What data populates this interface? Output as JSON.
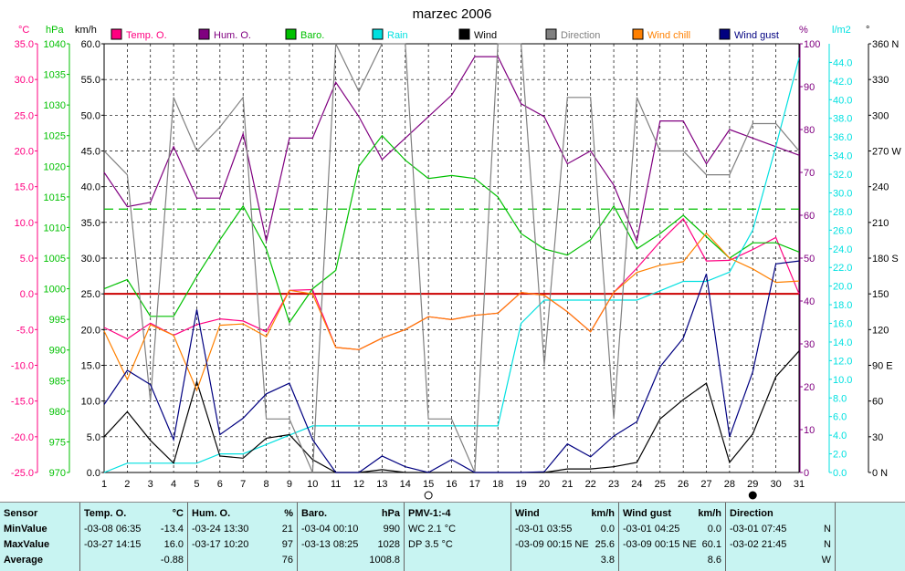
{
  "chart_data": {
    "type": "line",
    "title": "marzec 2006",
    "x": [
      1,
      2,
      3,
      4,
      5,
      6,
      7,
      8,
      9,
      10,
      11,
      12,
      13,
      14,
      15,
      16,
      17,
      18,
      19,
      20,
      21,
      22,
      23,
      24,
      25,
      26,
      27,
      28,
      29,
      30,
      31
    ],
    "axes": {
      "temp": {
        "label": "°C",
        "ylim": [
          -25,
          35
        ],
        "ticks": [
          "35.0",
          "30.0",
          "25.0",
          "20.0",
          "15.0",
          "10.0",
          "5.0",
          "0.0",
          "-5.0",
          "-10.0",
          "-15.0",
          "-20.0",
          "-25.0"
        ],
        "color": "#ff0080"
      },
      "baro": {
        "label": "hPa",
        "ylim": [
          970,
          1040
        ],
        "ticks": [
          "1040",
          "1035",
          "1030",
          "1025",
          "1020",
          "1015",
          "1010",
          "1005",
          "1000",
          "995",
          "990",
          "985",
          "980",
          "975",
          "970"
        ],
        "color": "#00c000"
      },
      "wind": {
        "label": "km/h",
        "ylim": [
          0,
          60
        ],
        "ticks": [
          "60.0",
          "55.0",
          "50.0",
          "45.0",
          "40.0",
          "35.0",
          "30.0",
          "25.0",
          "20.0",
          "15.0",
          "10.0",
          "5.0",
          "0.0"
        ],
        "color": "#000000"
      },
      "hum": {
        "label": "%",
        "ylim": [
          0,
          100
        ],
        "ticks": [
          "100",
          "90",
          "80",
          "70",
          "60",
          "50",
          "40",
          "30",
          "20",
          "10",
          "0"
        ],
        "color": "#800080"
      },
      "rain": {
        "label": "l/m2",
        "ylim": [
          0,
          46
        ],
        "ticks": [
          "44.0",
          "42.0",
          "40.0",
          "38.0",
          "36.0",
          "34.0",
          "32.0",
          "30.0",
          "28.0",
          "26.0",
          "24.0",
          "22.0",
          "20.0",
          "18.0",
          "16.0",
          "14.0",
          "12.0",
          "10.0",
          "8.0",
          "6.0",
          "4.0",
          "2.0",
          "0.0"
        ],
        "color": "#00e0e0"
      },
      "dir": {
        "label": "°",
        "ylim": [
          0,
          360
        ],
        "ticks": [
          "360 N",
          "330",
          "300",
          "270 W",
          "240",
          "210",
          "180 S",
          "150",
          "120",
          "90 E",
          "60",
          "30",
          "0 N"
        ],
        "color": "#000000"
      }
    },
    "legend": [
      {
        "name": "Temp. O.",
        "color": "#ff0080"
      },
      {
        "name": "Hum. O.",
        "color": "#800080"
      },
      {
        "name": "Baro.",
        "color": "#00c000"
      },
      {
        "name": "Rain",
        "color": "#00e0e0"
      },
      {
        "name": "Wind",
        "color": "#000000"
      },
      {
        "name": "Direction",
        "color": "#808080"
      },
      {
        "name": "Wind chill",
        "color": "#ff8000"
      },
      {
        "name": "Wind gust",
        "color": "#000080"
      }
    ],
    "series": [
      {
        "name": "Temp. O.",
        "axis": "temp",
        "color": "#ff0080",
        "values": [
          -4.7,
          -6.3,
          -4.1,
          -5.8,
          -4.3,
          -3.5,
          -3.8,
          -5.3,
          0.5,
          0.6,
          -7.5,
          -7.8,
          -6.2,
          -5.0,
          -3.2,
          -3.6,
          -3.0,
          -2.7,
          0.2,
          -0.2,
          -2.5,
          -5.3,
          0.2,
          3.6,
          7.3,
          10.5,
          4.6,
          4.7,
          6.2,
          7.9,
          0.0
        ]
      },
      {
        "name": "Hum. O.",
        "axis": "hum",
        "color": "#800080",
        "values": [
          70,
          62,
          63,
          76,
          64,
          64,
          79,
          54,
          78,
          78,
          91,
          83,
          73,
          78,
          83,
          88,
          97,
          97,
          86,
          83,
          72,
          75,
          67,
          54,
          82,
          82,
          72,
          80,
          78,
          76,
          74
        ]
      },
      {
        "name": "Baro.",
        "axis": "baro",
        "color": "#00c000",
        "values": [
          1000,
          1001.5,
          995.5,
          995.5,
          1002,
          1008,
          1013.5,
          1006.5,
          994.5,
          1000,
          1003,
          1020,
          1025,
          1021,
          1018,
          1018.5,
          1018,
          1015,
          1009,
          1006.5,
          1005.5,
          1008,
          1013.5,
          1006.5,
          1009,
          1012,
          1008.5,
          1005,
          1007.5,
          1007.5,
          1006
        ]
      },
      {
        "name": "Rain",
        "axis": "rain",
        "color": "#00e0e0",
        "values": [
          0,
          1,
          1,
          1,
          1,
          2,
          2,
          3,
          4,
          5,
          5,
          5,
          5,
          5,
          5,
          5,
          5,
          5,
          16,
          18.5,
          18.5,
          18.5,
          18.5,
          18.5,
          19.5,
          20.5,
          20.5,
          21.5,
          26,
          35,
          44.5
        ]
      },
      {
        "name": "Wind",
        "axis": "wind",
        "color": "#000000",
        "values": [
          5.0,
          8.5,
          4.5,
          1.3,
          12.7,
          2.3,
          2.0,
          4.8,
          5.3,
          1.8,
          0,
          0,
          0.4,
          0,
          0,
          0,
          0,
          0,
          0,
          0,
          0.5,
          0.5,
          0.8,
          1.4,
          7.5,
          10.2,
          12.5,
          1.4,
          5.4,
          13.4,
          17.0
        ]
      },
      {
        "name": "Direction",
        "axis": "dir",
        "color": "#808080",
        "values": [
          270,
          250,
          60,
          315,
          270,
          290,
          315,
          45,
          45,
          0,
          360,
          320,
          360,
          360,
          45,
          45,
          0,
          360,
          360,
          90,
          315,
          315,
          45,
          315,
          270,
          270,
          250,
          250,
          293,
          293,
          270
        ]
      },
      {
        "name": "Wind chill",
        "axis": "temp",
        "color": "#ff8000",
        "values": [
          -5.2,
          -12.0,
          -4.3,
          -5.8,
          -13.5,
          -4.4,
          -4.2,
          -6.0,
          0.5,
          0.0,
          -7.5,
          -7.8,
          -6.2,
          -5.0,
          -3.2,
          -3.6,
          -3.0,
          -2.7,
          0.2,
          -0.2,
          -2.5,
          -5.3,
          0.2,
          3.0,
          4.0,
          4.5,
          8.5,
          5.0,
          3.5,
          1.6,
          1.8
        ]
      },
      {
        "name": "Wind gust",
        "axis": "wind",
        "color": "#000080",
        "values": [
          9.5,
          14.3,
          12.3,
          4.6,
          22.8,
          5.3,
          7.6,
          11.0,
          12.5,
          4.6,
          0,
          0,
          2.3,
          0.8,
          0,
          1.8,
          0,
          0,
          0,
          0.1,
          4.0,
          2.2,
          5.1,
          7.1,
          14.8,
          18.8,
          27.8,
          5.0,
          14.1,
          29.2,
          29.6
        ]
      }
    ],
    "reference_lines": [
      {
        "axis": "temp",
        "value": 0,
        "color": "#cc0000",
        "style": "solid"
      },
      {
        "axis": "baro",
        "value": 1013,
        "color": "#00c000",
        "style": "dashed"
      }
    ],
    "moon": [
      {
        "day": 15,
        "phase": "new"
      },
      {
        "day": 29,
        "phase": "full"
      }
    ],
    "grid": true
  },
  "table": {
    "row_labels": [
      "Sensor",
      "MinValue",
      "MaxValue",
      "Average"
    ],
    "columns": [
      {
        "name": "Temp. O.",
        "unit": "°C",
        "min_time": "-03-08 06:35",
        "min": "-13.4",
        "max_time": "-03-27 14:15",
        "max": "16.0",
        "avg": "-0.88"
      },
      {
        "name": "Hum. O.",
        "unit": "%",
        "min_time": "-03-24 13:30",
        "min": "21",
        "max_time": "-03-17 10:20",
        "max": "97",
        "avg": "76"
      },
      {
        "name": "Baro.",
        "unit": "hPa",
        "min_time": "-03-04 00:10",
        "min": "990",
        "max_time": "-03-13 08:25",
        "max": "1028",
        "avg": "1008.8"
      },
      {
        "name": "PMV-1:-4",
        "unit": "",
        "min_time": "WC 2.1 °C",
        "min": "",
        "max_time": "DP 3.5 °C",
        "max": "",
        "avg": ""
      },
      {
        "name": "Wind",
        "unit": "km/h",
        "min_time": "-03-01 03:55",
        "min": "0.0",
        "max_time": "-03-09 00:15 NE",
        "max": "25.6",
        "avg": "3.8"
      },
      {
        "name": "Wind gust",
        "unit": "km/h",
        "min_time": "-03-01 04:25",
        "min": "0.0",
        "max_time": "-03-09 00:15 NE",
        "max": "60.1",
        "avg": "8.6"
      },
      {
        "name": "Direction",
        "unit": "",
        "min_time": "-03-01 07:45",
        "min": "N",
        "max_time": "-03-02 21:45",
        "max": "N",
        "avg": "W"
      }
    ]
  }
}
